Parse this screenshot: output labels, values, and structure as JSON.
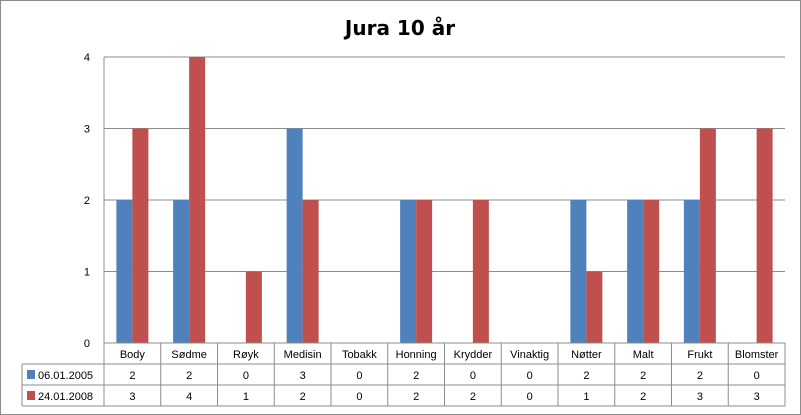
{
  "chart_data": {
    "type": "bar",
    "title": "Jura 10 år",
    "categories": [
      "Body",
      "Sødme",
      "Røyk",
      "Medisin",
      "Tobakk",
      "Honning",
      "Krydder",
      "Vinaktig",
      "Nøtter",
      "Malt",
      "Frukt",
      "Blomster"
    ],
    "series": [
      {
        "name": "06.01.2005",
        "color": "#4f81bd",
        "values": [
          2,
          2,
          0,
          3,
          0,
          2,
          0,
          0,
          2,
          2,
          2,
          0
        ]
      },
      {
        "name": "24.01.2008",
        "color": "#c0504d",
        "values": [
          3,
          4,
          1,
          2,
          0,
          2,
          2,
          0,
          1,
          2,
          3,
          3
        ]
      }
    ],
    "ylim": [
      0,
      4
    ],
    "yticks": [
      0,
      1,
      2,
      3,
      4
    ],
    "grid": true,
    "legend": "data table"
  }
}
